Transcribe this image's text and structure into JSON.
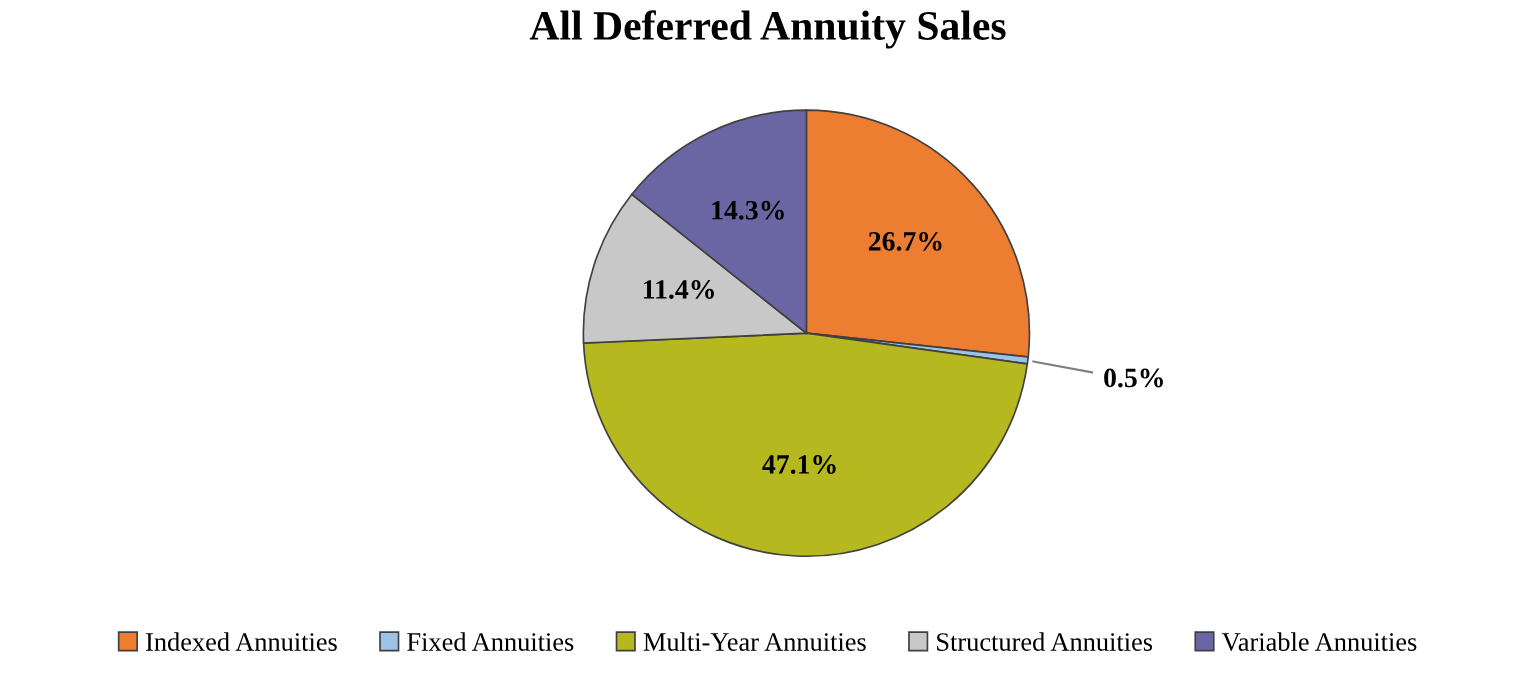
{
  "chart_data": {
    "type": "pie",
    "title": "All Deferred Annuity Sales",
    "categories": [
      "Indexed Annuities",
      "Fixed Annuities",
      "Multi-Year Annuities",
      "Structured Annuities",
      "Variable Annuities"
    ],
    "values": [
      26.7,
      0.5,
      47.1,
      11.4,
      14.3
    ],
    "colors": [
      "#ed7d31",
      "#9dc3e6",
      "#b5b81e",
      "#c8c8c8",
      "#6a66a3"
    ],
    "value_labels": [
      "26.7%",
      "0.5%",
      "47.1%",
      "11.4%",
      "14.3%"
    ],
    "legend": "bottom"
  }
}
